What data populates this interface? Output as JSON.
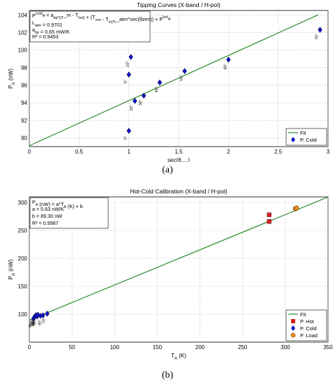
{
  "captions": [
    "(a)",
    "(b)"
  ],
  "chart_data": [
    {
      "type": "scatter",
      "title": "Tipping Curves (X-band / H-pol)",
      "xlabel": "sec(θ",
      "xlabel_sub": "zen",
      "xlabel_end": ")",
      "ylabel": "P",
      "ylabel_sub": "A",
      "ylabel_end": " (nW)",
      "xlim": [
        0,
        3.0
      ],
      "ylim": [
        89,
        104.5
      ],
      "xticks": [
        0,
        0.5,
        1,
        1.5,
        2,
        2.5,
        3
      ],
      "xtick_labels": [
        "0",
        "0.5",
        "1",
        "1.5",
        "2",
        "2.5",
        "3"
      ],
      "yticks": [
        90,
        92,
        94,
        96,
        98,
        100,
        102,
        104
      ],
      "ytick_labels": [
        "90",
        "92",
        "94",
        "96",
        "98",
        "100",
        "102",
        "104"
      ],
      "grid": true,
      "legend_position": "bottom-right",
      "annotation": {
        "lines": [
          "P_A^cold = a_bp*((T_m - T_hot) + (T_cos - T_m)*L_atm^sec(θzen)) + P_A^hot",
          "L_atm = 0.9701",
          "a_bp = 0.65 mW/K",
          "R² = 0.9453"
        ]
      },
      "series": [
        {
          "name": "Fit",
          "kind": "line",
          "color": "#2a8a2a",
          "x": [
            0,
            2.9
          ],
          "y": [
            89.1,
            104.0
          ]
        },
        {
          "name": "P. Cold",
          "kind": "diamond",
          "color": "#1010c8",
          "x": [
            1.0,
            1.0,
            1.02,
            1.06,
            1.15,
            1.31,
            1.56,
            2.0,
            2.92
          ],
          "y": [
            90.8,
            97.2,
            99.2,
            94.2,
            94.8,
            96.3,
            97.6,
            98.9,
            102.3
          ],
          "labels": [
            "0°",
            "0°",
            "10°",
            "20°",
            "30°",
            "40°",
            "50°",
            "60°",
            "70°"
          ]
        }
      ]
    },
    {
      "type": "scatter",
      "title": "Hot-Cold Calibration (X-band / H-pol)",
      "xlabel": "T",
      "xlabel_sub": "A",
      "xlabel_end": " (K)",
      "ylabel": "P",
      "ylabel_sub": "A",
      "ylabel_end": " (nW)",
      "xlim": [
        0,
        350
      ],
      "ylim": [
        50,
        310
      ],
      "xticks": [
        0,
        50,
        100,
        150,
        200,
        250,
        300,
        350
      ],
      "xtick_labels": [
        "0",
        "50",
        "100",
        "150",
        "200",
        "250",
        "300",
        "350"
      ],
      "yticks": [
        100,
        150,
        200,
        250,
        300
      ],
      "ytick_labels": [
        "100",
        "150",
        "200",
        "250",
        "300"
      ],
      "grid": true,
      "legend_position": "bottom-right",
      "annotation": {
        "lines": [
          "P_A (nW) = a*T_A (K) + b",
          "a = 0.63 nW/K",
          "b = 89.30 nW",
          "R² = 0.9987"
        ]
      },
      "series": [
        {
          "name": "Fit",
          "kind": "line",
          "color": "#2a8a2a",
          "x": [
            0,
            350
          ],
          "y": [
            89.3,
            309.8
          ]
        },
        {
          "name": "P. Hot",
          "kind": "square",
          "color": "#d42020",
          "x": [
            281,
            281
          ],
          "y": [
            266,
            278
          ]
        },
        {
          "name": "P. Cold",
          "kind": "diamond",
          "color": "#1010c8",
          "x": [
            5,
            6,
            7,
            8,
            9,
            10,
            13,
            16,
            21
          ],
          "y": [
            92,
            95,
            97,
            98,
            96,
            99,
            97,
            98,
            101
          ],
          "labels": [
            "0°",
            "10°",
            "20°",
            "30°",
            "40°",
            "50°",
            "",
            "60°",
            "70°"
          ]
        },
        {
          "name": "P. Load",
          "kind": "circle",
          "color": "#f08a1a",
          "x": [
            312,
            313
          ],
          "y": [
            289,
            290
          ]
        }
      ]
    }
  ]
}
